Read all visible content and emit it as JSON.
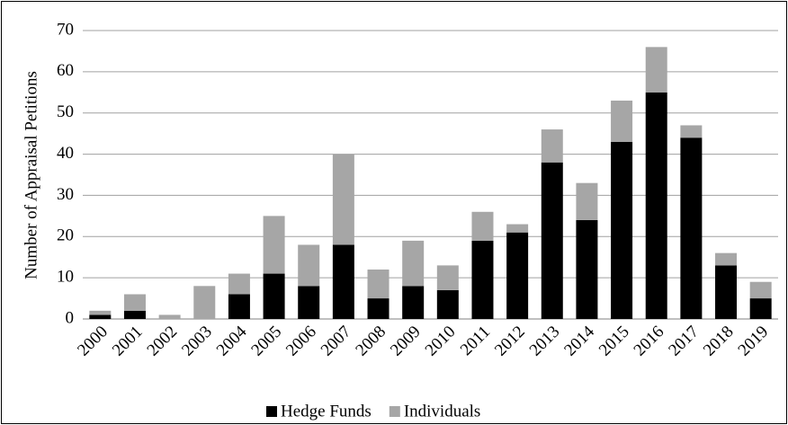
{
  "chart_data": {
    "type": "bar",
    "stacked": true,
    "y_label": "Number of Appraisal Petitions",
    "categories": [
      "2000",
      "2001",
      "2002",
      "2003",
      "2004",
      "2005",
      "2006",
      "2007",
      "2008",
      "2009",
      "2010",
      "2011",
      "2012",
      "2013",
      "2014",
      "2015",
      "2016",
      "2017",
      "2018",
      "2019"
    ],
    "series": [
      {
        "name": "Hedge Funds",
        "color": "#000000",
        "values": [
          1,
          2,
          0,
          0,
          6,
          11,
          8,
          18,
          5,
          8,
          7,
          19,
          21,
          38,
          24,
          43,
          55,
          44,
          13,
          5
        ]
      },
      {
        "name": "Individuals",
        "color": "#a6a6a6",
        "values": [
          1,
          4,
          1,
          8,
          5,
          14,
          10,
          22,
          7,
          11,
          6,
          7,
          2,
          8,
          9,
          10,
          11,
          3,
          3,
          4
        ]
      }
    ],
    "ylim": [
      0,
      70
    ],
    "yticks": [
      0,
      10,
      20,
      30,
      40,
      50,
      60,
      70
    ],
    "grid": true,
    "legend": "bottom"
  }
}
